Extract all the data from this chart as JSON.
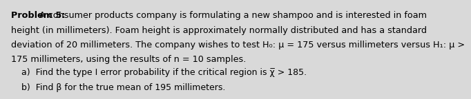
{
  "background_color": "#d9d9d9",
  "text_color": "#000000",
  "title_bold": "Problem 5:",
  "title_rest": " A consumer products company is formulating a new shampoo and is interested in foam",
  "line2": "height (in millimeters). Foam height is approximately normally distributed and has a standard",
  "line3": "deviation of 20 millimeters. The company wishes to test H₀: μ = 175 versus millimeters versus H₁: μ >",
  "line4": "175 millimeters, using the results of n = 10 samples.",
  "item_a": "a)  Find the type I error probability if the critical region is χ̅ > 185.",
  "item_b": "b)  Find β for the true mean of 195 millimeters.",
  "font_size_main": 9.2,
  "font_size_items": 9.0,
  "indent_items": 0.045
}
